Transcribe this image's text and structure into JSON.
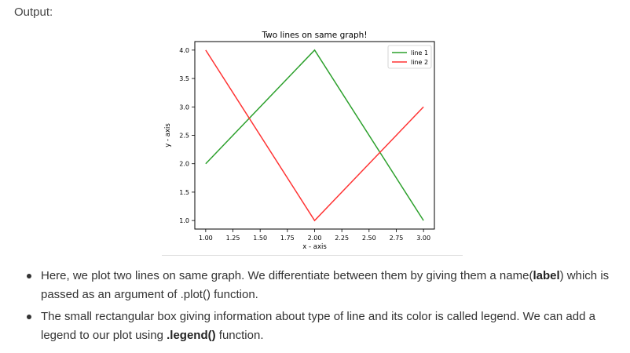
{
  "output_label": "Output:",
  "chart_data": {
    "type": "line",
    "title": "Two lines on same graph!",
    "xlabel": "x - axis",
    "ylabel": "y - axis",
    "xlim": [
      0.9,
      3.1
    ],
    "ylim": [
      0.85,
      4.15
    ],
    "xticks": [
      1.0,
      1.25,
      1.5,
      1.75,
      2.0,
      2.25,
      2.5,
      2.75,
      3.0
    ],
    "xtick_labels": [
      "1.00",
      "1.25",
      "1.50",
      "1.75",
      "2.00",
      "2.25",
      "2.50",
      "2.75",
      "3.00"
    ],
    "yticks": [
      1.0,
      1.5,
      2.0,
      2.5,
      3.0,
      3.5,
      4.0
    ],
    "ytick_labels": [
      "1.0",
      "1.5",
      "2.0",
      "2.5",
      "3.0",
      "3.5",
      "4.0"
    ],
    "grid": false,
    "legend_position": "top-right",
    "series": [
      {
        "name": "line 1",
        "color": "#2ca02c",
        "x": [
          1,
          2,
          3
        ],
        "y": [
          2,
          4,
          1
        ]
      },
      {
        "name": "line 2",
        "color": "#ff3333",
        "x": [
          1,
          2,
          3
        ],
        "y": [
          4,
          1,
          3
        ]
      }
    ]
  },
  "bullets": [
    {
      "parts": [
        {
          "text": "Here, we plot two lines on same graph. We differentiate between them by giving them a name(",
          "bold": false
        },
        {
          "text": "label",
          "bold": true
        },
        {
          "text": ") which is passed as an argument of .plot() function.",
          "bold": false
        }
      ]
    },
    {
      "parts": [
        {
          "text": "The small rectangular box giving information about type of line and its color is called legend. We can add a legend to our plot using ",
          "bold": false
        },
        {
          "text": ".legend()",
          "bold": true
        },
        {
          "text": " function.",
          "bold": false
        }
      ]
    }
  ]
}
